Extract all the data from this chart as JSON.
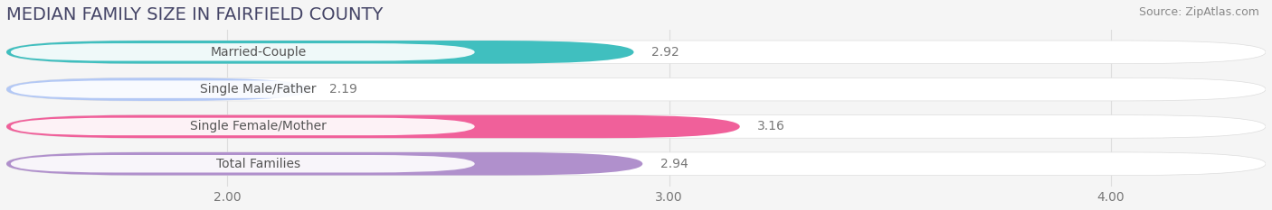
{
  "title": "MEDIAN FAMILY SIZE IN FAIRFIELD COUNTY",
  "source": "Source: ZipAtlas.com",
  "categories": [
    "Married-Couple",
    "Single Male/Father",
    "Single Female/Mother",
    "Total Families"
  ],
  "values": [
    2.92,
    2.19,
    3.16,
    2.94
  ],
  "bar_colors": [
    "#40bfbf",
    "#b3c8f5",
    "#f0609a",
    "#b090cc"
  ],
  "xlim_min": 1.5,
  "xlim_max": 4.35,
  "xticks": [
    2.0,
    3.0,
    4.0
  ],
  "xtick_labels": [
    "2.00",
    "3.00",
    "4.00"
  ],
  "bar_height": 0.62,
  "background_color": "#f5f5f5",
  "bar_bg_color": "#ffffff",
  "label_fontsize": 10,
  "value_fontsize": 10,
  "title_fontsize": 14,
  "source_fontsize": 9,
  "title_color": "#444466",
  "label_color": "#555555",
  "value_color": "#777777",
  "source_color": "#888888",
  "grid_color": "#dddddd"
}
